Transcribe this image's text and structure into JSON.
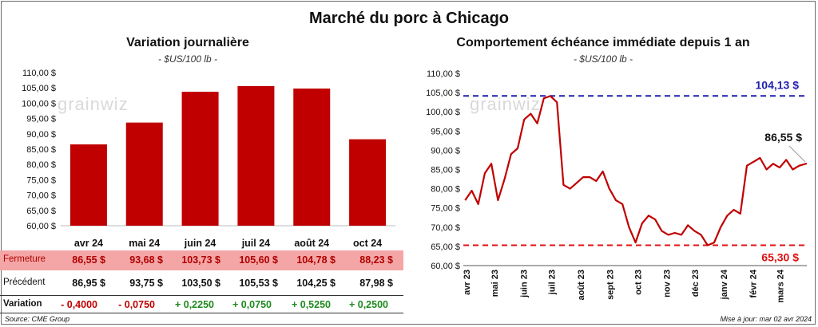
{
  "main_title": "Marché du porc à Chicago",
  "source": "Source: CME Group",
  "update": "Mise à jour: mar 02 avr 2024",
  "watermark": "grainwiz",
  "colors": {
    "bar": "#c00000",
    "line": "#c00000",
    "high": "#1f1fb0",
    "low": "#e01010",
    "neg": "#c00000",
    "pos": "#1f8a1f"
  },
  "left_chart": {
    "title": "Variation  journalière",
    "subtitle": "- $US/100 lb -",
    "y_ticks": [
      "110,00 $",
      "105,00 $",
      "100,00 $",
      "95,00 $",
      "90,00 $",
      "85,00 $",
      "80,00 $",
      "75,00 $",
      "70,00 $",
      "65,00 $",
      "60,00 $"
    ],
    "months": [
      "avr 24",
      "mai 24",
      "juin 24",
      "juil 24",
      "août 24",
      "oct 24"
    ]
  },
  "table": {
    "row_labels": {
      "close": "Fermeture",
      "prev": "Précédent",
      "change": "Variation"
    },
    "close": [
      "86,55  $",
      "93,68  $",
      "103,73  $",
      "105,60  $",
      "104,78  $",
      "88,23  $"
    ],
    "prev": [
      "86,95  $",
      "93,75  $",
      "103,50  $",
      "105,53  $",
      "104,25  $",
      "87,98  $"
    ],
    "change": [
      "- 0,4000",
      "- 0,0750",
      "+ 0,2250",
      "+ 0,0750",
      "+ 0,5250",
      "+ 0,2500"
    ]
  },
  "right_chart": {
    "title": "Comportement  échéance  immédiate  depuis  1 an",
    "subtitle": "- $US/100 lb -",
    "y_ticks": [
      "110,00 $",
      "105,00 $",
      "100,00 $",
      "95,00 $",
      "90,00 $",
      "85,00 $",
      "80,00 $",
      "75,00 $",
      "70,00 $",
      "65,00 $",
      "60,00 $"
    ],
    "x_ticks": [
      "avr 23",
      "mai 23",
      "juin 23",
      "juil 23",
      "août 23",
      "sept 23",
      "oct 23",
      "nov 23",
      "déc 23",
      "janv 24",
      "févr 24",
      "mars 24"
    ],
    "high_label": "104,13 $",
    "low_label": "65,30 $",
    "last_label": "86,55 $"
  },
  "chart_data": [
    {
      "type": "bar",
      "title": "Variation  journalière",
      "ylabel": "$US/100 lb",
      "categories": [
        "avr 24",
        "mai 24",
        "juin 24",
        "juil 24",
        "août 24",
        "oct 24"
      ],
      "values": [
        86.55,
        93.68,
        103.73,
        105.6,
        104.78,
        88.23
      ],
      "ylim": [
        60,
        110
      ]
    },
    {
      "type": "line",
      "title": "Comportement  échéance  immédiate  depuis  1 an",
      "ylabel": "$US/100 lb",
      "ylim": [
        60,
        110
      ],
      "x_range": [
        "2023-04-01",
        "2024-04-02"
      ],
      "x": [
        "2023-04-03",
        "2023-04-10",
        "2023-04-17",
        "2023-04-24",
        "2023-05-01",
        "2023-05-08",
        "2023-05-15",
        "2023-05-22",
        "2023-05-29",
        "2023-06-05",
        "2023-06-12",
        "2023-06-19",
        "2023-06-26",
        "2023-07-03",
        "2023-07-10",
        "2023-07-17",
        "2023-07-24",
        "2023-07-31",
        "2023-08-07",
        "2023-08-14",
        "2023-08-21",
        "2023-08-28",
        "2023-09-04",
        "2023-09-11",
        "2023-09-18",
        "2023-09-25",
        "2023-10-02",
        "2023-10-09",
        "2023-10-16",
        "2023-10-23",
        "2023-10-30",
        "2023-11-06",
        "2023-11-13",
        "2023-11-20",
        "2023-11-27",
        "2023-12-04",
        "2023-12-11",
        "2023-12-18",
        "2023-12-25",
        "2024-01-01",
        "2024-01-08",
        "2024-01-15",
        "2024-01-22",
        "2024-01-29",
        "2024-02-05",
        "2024-02-12",
        "2024-02-19",
        "2024-02-26",
        "2024-03-04",
        "2024-03-11",
        "2024-03-18",
        "2024-03-25",
        "2024-04-02"
      ],
      "y": [
        77.0,
        79.5,
        76.0,
        84.0,
        86.5,
        77.0,
        82.5,
        89.0,
        90.5,
        98.0,
        99.5,
        97.0,
        103.5,
        104.1,
        102.5,
        81.0,
        80.0,
        81.5,
        83.0,
        83.0,
        82.0,
        84.5,
        80.0,
        77.0,
        76.0,
        70.0,
        66.0,
        71.0,
        73.0,
        72.0,
        69.0,
        68.0,
        68.5,
        68.0,
        70.5,
        69.0,
        68.0,
        65.3,
        66.0,
        70.0,
        73.0,
        74.5,
        73.5,
        86.0,
        87.0,
        88.0,
        85.0,
        86.5,
        85.5,
        87.5,
        85.0,
        86.0,
        86.55
      ],
      "reference_lines": [
        {
          "label": "104,13 $",
          "value": 104.13
        },
        {
          "label": "65,30 $",
          "value": 65.3
        }
      ],
      "annotations": [
        {
          "label": "86,55 $",
          "value": 86.55
        }
      ]
    }
  ]
}
